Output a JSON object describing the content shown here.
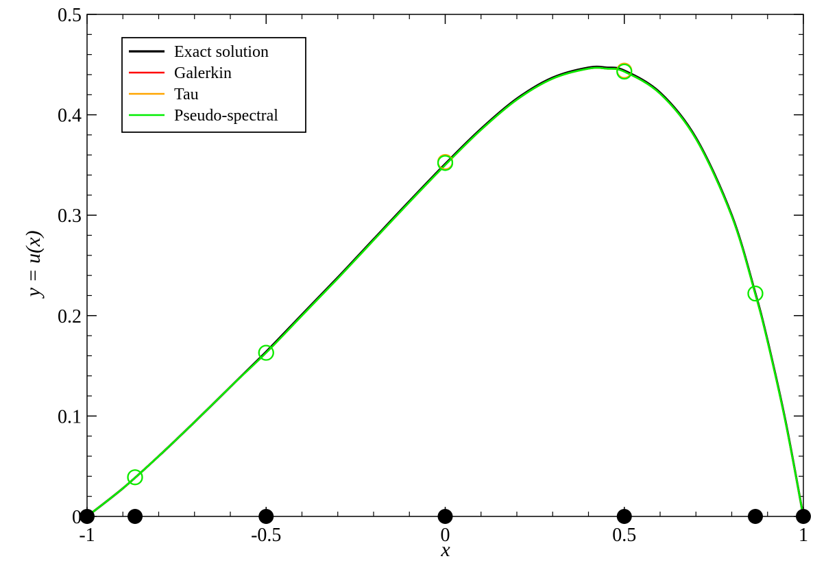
{
  "chart_data": {
    "type": "line",
    "xlabel": "x",
    "ylabel": "y = u(x)",
    "xlim": [
      -1,
      1
    ],
    "ylim": [
      0,
      0.5
    ],
    "x_ticks": [
      "-1",
      "-0.5",
      "0",
      "0.5",
      "1"
    ],
    "y_ticks": [
      "0",
      "0.1",
      "0.2",
      "0.3",
      "0.4",
      "0.5"
    ],
    "grid": false,
    "legend_position": "top-left",
    "series": [
      {
        "name": "Exact solution",
        "color": "#000000",
        "x": [
          -1,
          -0.9,
          -0.8,
          -0.7,
          -0.6,
          -0.5,
          -0.4,
          -0.3,
          -0.2,
          -0.1,
          0,
          0.1,
          0.2,
          0.3,
          0.4,
          0.45,
          0.5,
          0.6,
          0.7,
          0.8,
          0.866,
          0.9,
          0.95,
          1
        ],
        "y": [
          0,
          0.028,
          0.06,
          0.094,
          0.129,
          0.164,
          0.201,
          0.238,
          0.276,
          0.314,
          0.351,
          0.386,
          0.416,
          0.437,
          0.447,
          0.447,
          0.444,
          0.422,
          0.377,
          0.3,
          0.222,
          0.175,
          0.095,
          0
        ]
      },
      {
        "name": "Galerkin",
        "color": "#ff0000",
        "x": [
          -1,
          -0.9,
          -0.8,
          -0.7,
          -0.6,
          -0.5,
          -0.4,
          -0.3,
          -0.2,
          -0.1,
          0,
          0.1,
          0.2,
          0.3,
          0.4,
          0.45,
          0.5,
          0.6,
          0.7,
          0.8,
          0.866,
          0.9,
          0.95,
          1
        ],
        "y": [
          0,
          0.028,
          0.06,
          0.094,
          0.129,
          0.163,
          0.2,
          0.237,
          0.275,
          0.313,
          0.35,
          0.385,
          0.415,
          0.436,
          0.446,
          0.446,
          0.443,
          0.421,
          0.376,
          0.299,
          0.221,
          0.174,
          0.094,
          0
        ]
      },
      {
        "name": "Tau",
        "color": "#ffa500",
        "x": [
          -1,
          -0.9,
          -0.8,
          -0.7,
          -0.6,
          -0.5,
          -0.4,
          -0.3,
          -0.2,
          -0.1,
          0,
          0.1,
          0.2,
          0.3,
          0.4,
          0.45,
          0.5,
          0.6,
          0.7,
          0.8,
          0.866,
          0.9,
          0.95,
          1
        ],
        "y": [
          0,
          0.028,
          0.06,
          0.094,
          0.129,
          0.163,
          0.2,
          0.237,
          0.275,
          0.313,
          0.35,
          0.385,
          0.415,
          0.436,
          0.446,
          0.446,
          0.443,
          0.421,
          0.376,
          0.299,
          0.221,
          0.174,
          0.094,
          0
        ],
        "markers_x": [
          -0.866,
          -0.5,
          0,
          0.5,
          0.866
        ],
        "markers_y": [
          0.039,
          0.163,
          0.353,
          0.444,
          0.222
        ]
      },
      {
        "name": "Pseudo-spectral",
        "color": "#00ee00",
        "x": [
          -1,
          -0.9,
          -0.8,
          -0.7,
          -0.6,
          -0.5,
          -0.4,
          -0.3,
          -0.2,
          -0.1,
          0,
          0.1,
          0.2,
          0.3,
          0.4,
          0.45,
          0.5,
          0.6,
          0.7,
          0.8,
          0.866,
          0.9,
          0.95,
          1
        ],
        "y": [
          0,
          0.028,
          0.06,
          0.094,
          0.129,
          0.163,
          0.2,
          0.237,
          0.275,
          0.313,
          0.35,
          0.385,
          0.415,
          0.436,
          0.446,
          0.446,
          0.443,
          0.421,
          0.376,
          0.299,
          0.221,
          0.174,
          0.094,
          0
        ],
        "markers_x": [
          -0.866,
          -0.5,
          0,
          0.5,
          0.866
        ],
        "markers_y": [
          0.039,
          0.163,
          0.352,
          0.443,
          0.222
        ]
      }
    ],
    "collocation_points": {
      "color": "#000000",
      "x": [
        -1,
        -0.866,
        -0.5,
        0,
        0.5,
        0.866,
        1
      ],
      "y": [
        0,
        0,
        0,
        0,
        0,
        0,
        0
      ]
    }
  }
}
